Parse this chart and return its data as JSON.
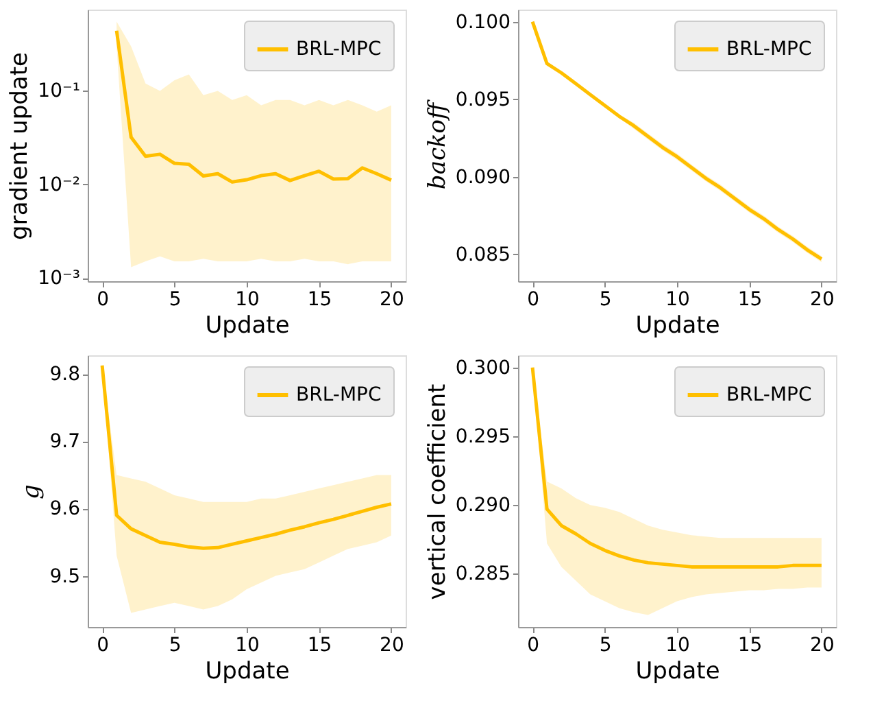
{
  "chart_data": [
    {
      "type": "line",
      "xlabel": "Update",
      "ylabel": "gradient update",
      "log": "y",
      "legend": "top right",
      "xlim": [
        -1,
        21
      ],
      "xticks": [
        0,
        5,
        10,
        15,
        20
      ],
      "ylim": [
        0.00092,
        0.74
      ],
      "yticks": [
        {
          "value": 0.001,
          "label": "10⁻³"
        },
        {
          "value": 0.01,
          "label": "10⁻²"
        },
        {
          "value": 0.1,
          "label": "10⁻¹"
        }
      ],
      "x": [
        1,
        2,
        3,
        4,
        5,
        6,
        7,
        8,
        9,
        10,
        11,
        12,
        13,
        14,
        15,
        16,
        17,
        18,
        19,
        20
      ],
      "series": [
        {
          "name": "BRL-MPC",
          "color": "#ffbf00",
          "values": [
            0.44,
            0.032,
            0.02,
            0.021,
            0.0168,
            0.0164,
            0.0123,
            0.013,
            0.0106,
            0.0112,
            0.0124,
            0.013,
            0.011,
            0.0124,
            0.0138,
            0.0114,
            0.0115,
            0.015,
            0.013,
            0.0111
          ],
          "lower": [
            0.3,
            0.0013,
            0.0015,
            0.0017,
            0.0015,
            0.0015,
            0.0016,
            0.0015,
            0.0015,
            0.0015,
            0.0016,
            0.0015,
            0.0015,
            0.0016,
            0.0015,
            0.0015,
            0.0014,
            0.0015,
            0.0015,
            0.0015
          ],
          "upper": [
            0.55,
            0.3,
            0.12,
            0.1,
            0.13,
            0.15,
            0.09,
            0.1,
            0.08,
            0.09,
            0.07,
            0.08,
            0.08,
            0.07,
            0.08,
            0.07,
            0.08,
            0.07,
            0.06,
            0.07
          ]
        }
      ]
    },
    {
      "type": "line",
      "xlabel": "Update",
      "ylabel": "backoff",
      "legend": "top right",
      "xlim": [
        -1,
        21
      ],
      "xticks": [
        0,
        5,
        10,
        15,
        20
      ],
      "ylim": [
        0.08327,
        0.10078
      ],
      "yticks": [
        {
          "value": 0.085,
          "label": "0.085"
        },
        {
          "value": 0.09,
          "label": "0.090"
        },
        {
          "value": 0.095,
          "label": "0.095"
        },
        {
          "value": 0.1,
          "label": "0.100"
        }
      ],
      "x": [
        0,
        1,
        2,
        3,
        4,
        5,
        6,
        7,
        8,
        9,
        10,
        11,
        12,
        13,
        14,
        15,
        16,
        17,
        18,
        19,
        20
      ],
      "series": [
        {
          "name": "BRL-MPC",
          "color": "#ffbf00",
          "values": [
            0.1,
            0.0973,
            0.0967,
            0.096,
            0.0953,
            0.0946,
            0.0939,
            0.0933,
            0.0926,
            0.0919,
            0.0913,
            0.0906,
            0.0899,
            0.0893,
            0.0886,
            0.0879,
            0.0873,
            0.0866,
            0.086,
            0.0853,
            0.0847
          ],
          "lower": [
            0.1,
            0.0972,
            0.0966,
            0.0959,
            0.0952,
            0.0945,
            0.0938,
            0.0931,
            0.0924,
            0.0917,
            0.0911,
            0.0904,
            0.0897,
            0.0891,
            0.0884,
            0.0877,
            0.0871,
            0.0864,
            0.0858,
            0.0851,
            0.0845
          ],
          "upper": [
            0.1,
            0.0974,
            0.0968,
            0.0961,
            0.0954,
            0.0947,
            0.094,
            0.0935,
            0.0928,
            0.0921,
            0.0915,
            0.0908,
            0.0901,
            0.0895,
            0.0888,
            0.0881,
            0.0875,
            0.0868,
            0.0862,
            0.0855,
            0.0849
          ]
        }
      ]
    },
    {
      "type": "line",
      "xlabel": "Update",
      "ylabel": "g",
      "legend": "top right",
      "xlim": [
        -1,
        21
      ],
      "xticks": [
        0,
        5,
        10,
        15,
        20
      ],
      "ylim": [
        9.424,
        9.828
      ],
      "yticks": [
        9.5,
        9.6,
        9.7,
        9.8
      ],
      "x": [
        0,
        1,
        2,
        3,
        4,
        5,
        6,
        7,
        8,
        9,
        10,
        11,
        12,
        13,
        14,
        15,
        16,
        17,
        18,
        19,
        20
      ],
      "series": [
        {
          "name": "BRL-MPC",
          "color": "#ffbf00",
          "values": [
            9.813,
            9.59,
            9.57,
            9.56,
            9.55,
            9.547,
            9.543,
            9.541,
            9.542,
            9.547,
            9.552,
            9.557,
            9.562,
            9.568,
            9.573,
            9.579,
            9.584,
            9.59,
            9.596,
            9.602,
            9.607
          ],
          "lower": [
            9.813,
            9.53,
            9.445,
            9.45,
            9.455,
            9.46,
            9.455,
            9.45,
            9.455,
            9.465,
            9.48,
            9.49,
            9.5,
            9.505,
            9.51,
            9.52,
            9.53,
            9.54,
            9.545,
            9.55,
            9.56
          ],
          "upper": [
            9.813,
            9.65,
            9.645,
            9.64,
            9.63,
            9.62,
            9.615,
            9.61,
            9.61,
            9.61,
            9.61,
            9.615,
            9.615,
            9.62,
            9.625,
            9.63,
            9.635,
            9.64,
            9.645,
            9.65,
            9.65
          ]
        }
      ]
    },
    {
      "type": "line",
      "xlabel": "Update",
      "ylabel": "vertical coefficient",
      "legend": "top right",
      "xlim": [
        -1,
        21
      ],
      "xticks": [
        0,
        5,
        10,
        15,
        20
      ],
      "ylim": [
        0.28113,
        0.30088
      ],
      "yticks": [
        {
          "value": 0.285,
          "label": "0.285"
        },
        {
          "value": 0.29,
          "label": "0.290"
        },
        {
          "value": 0.295,
          "label": "0.295"
        },
        {
          "value": 0.3,
          "label": "0.300"
        }
      ],
      "x": [
        0,
        1,
        2,
        3,
        4,
        5,
        6,
        7,
        8,
        9,
        10,
        11,
        12,
        13,
        14,
        15,
        16,
        17,
        18,
        19,
        20
      ],
      "series": [
        {
          "name": "BRL-MPC",
          "color": "#ffbf00",
          "values": [
            0.3,
            0.2897,
            0.2885,
            0.2879,
            0.2872,
            0.2867,
            0.2863,
            0.286,
            0.2858,
            0.2857,
            0.2856,
            0.2855,
            0.2855,
            0.2855,
            0.2855,
            0.2855,
            0.2855,
            0.2855,
            0.2856,
            0.2856,
            0.2856
          ],
          "lower": [
            0.3,
            0.2872,
            0.2855,
            0.2845,
            0.2835,
            0.283,
            0.2825,
            0.2822,
            0.282,
            0.2825,
            0.283,
            0.2833,
            0.2835,
            0.2836,
            0.2837,
            0.2838,
            0.2838,
            0.2839,
            0.2839,
            0.284,
            0.284
          ],
          "upper": [
            0.3,
            0.2917,
            0.2912,
            0.2905,
            0.29,
            0.2898,
            0.2895,
            0.289,
            0.2885,
            0.2882,
            0.288,
            0.2878,
            0.2877,
            0.2876,
            0.2876,
            0.2876,
            0.2876,
            0.2876,
            0.2876,
            0.2876,
            0.2876
          ]
        }
      ]
    }
  ]
}
